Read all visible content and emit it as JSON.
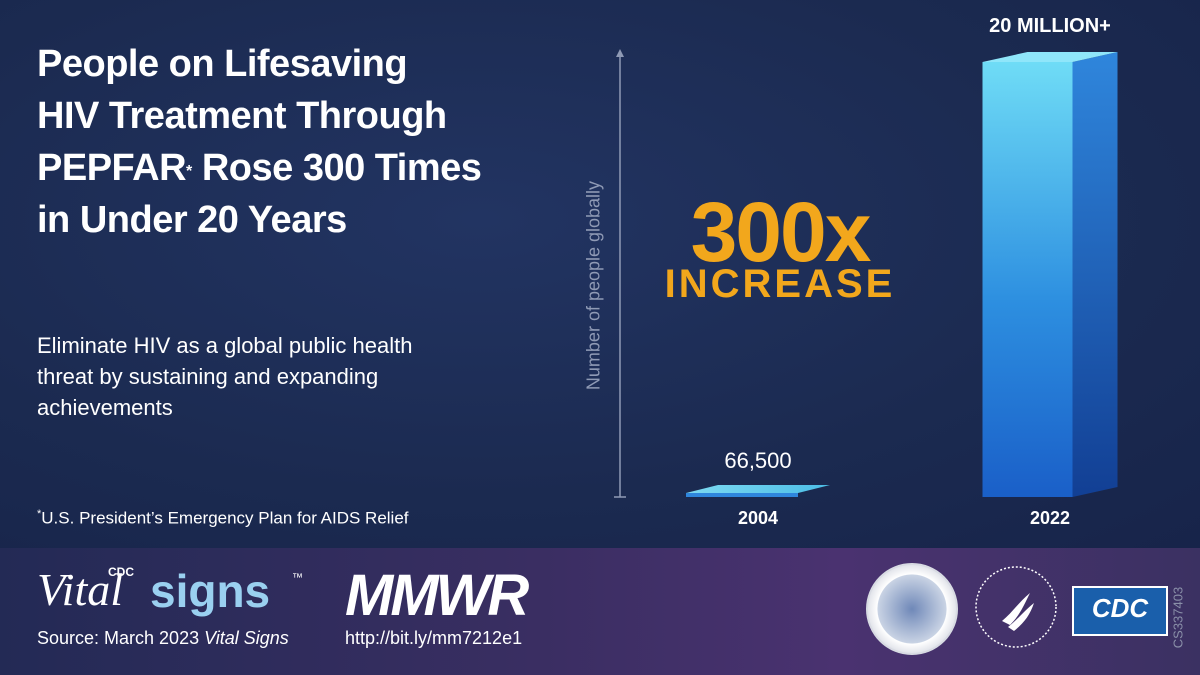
{
  "header": {
    "title_line1": "People on Lifesaving",
    "title_line2": "HIV Treatment Through",
    "title_line3a": "PEPFAR",
    "title_line3_sup": "*",
    "title_line3b": " Rose 300 Times",
    "title_line4": "in Under 20 Years"
  },
  "subtitle": "Eliminate HIV as a global public health threat by sustaining and expanding achievements",
  "footnote": {
    "mark": "*",
    "text": "U.S. President’s Emergency Plan for AIDS Relief"
  },
  "callout": {
    "multiplier": "300x",
    "word": "INCREASE"
  },
  "colors": {
    "accent": "#f2a71c",
    "bar_light": "#5fd0f0",
    "bar_dark": "#1a5fc8",
    "background": "#1c2b52"
  },
  "chart_data": {
    "type": "bar",
    "ylabel": "Number of people globally",
    "categories": [
      "2004",
      "2022"
    ],
    "values": [
      66500,
      20000000
    ],
    "data_labels": [
      "66,500",
      "20 MILLION+"
    ],
    "ylim": [
      0,
      20000000
    ],
    "grid": false
  },
  "footer": {
    "brand_cdc": "CDC",
    "brand_vital": "Vital",
    "brand_signs": "signs",
    "brand_tm": "™",
    "source_prefix": "Source: March 2023 ",
    "source_italic": "Vital Signs",
    "mmwr": "MMWR",
    "url": "http://bit.ly/mm7212e1",
    "cdc_logo_text": "CDC",
    "code": "CS337403"
  }
}
